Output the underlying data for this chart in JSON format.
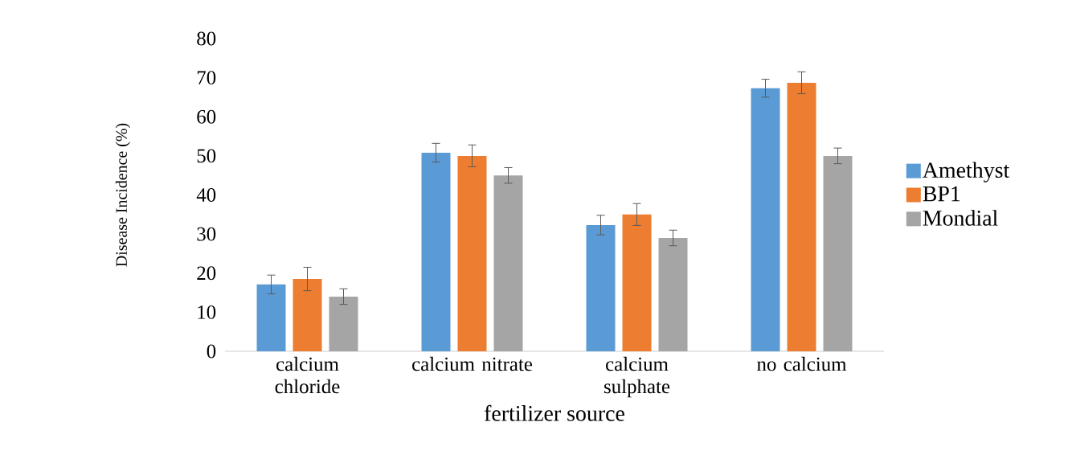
{
  "chart_data": {
    "type": "bar",
    "xlabel": "fertilizer source",
    "ylabel": "Disease Incidence (%)",
    "categories": [
      "calcium chloride",
      "calcium nitrate",
      "calcium sulphate",
      "no calcium"
    ],
    "series": [
      {
        "name": "Amethyst",
        "color": "#5b9bd5",
        "values": [
          17.1,
          50.8,
          32.3,
          67.3
        ],
        "errors": [
          2.4,
          2.4,
          2.5,
          2.3
        ]
      },
      {
        "name": "BP1",
        "color": "#ed7d31",
        "values": [
          18.5,
          50,
          35,
          68.7
        ],
        "errors": [
          3,
          2.8,
          2.8,
          2.8
        ]
      },
      {
        "name": "Mondial",
        "color": "#a5a5a5",
        "values": [
          14,
          45,
          29,
          50
        ],
        "errors": [
          2,
          2,
          2,
          2
        ]
      }
    ],
    "ylim": [
      0,
      80
    ],
    "yticks": [
      0,
      10,
      20,
      30,
      40,
      50,
      60,
      70,
      80
    ],
    "legend": "right"
  }
}
